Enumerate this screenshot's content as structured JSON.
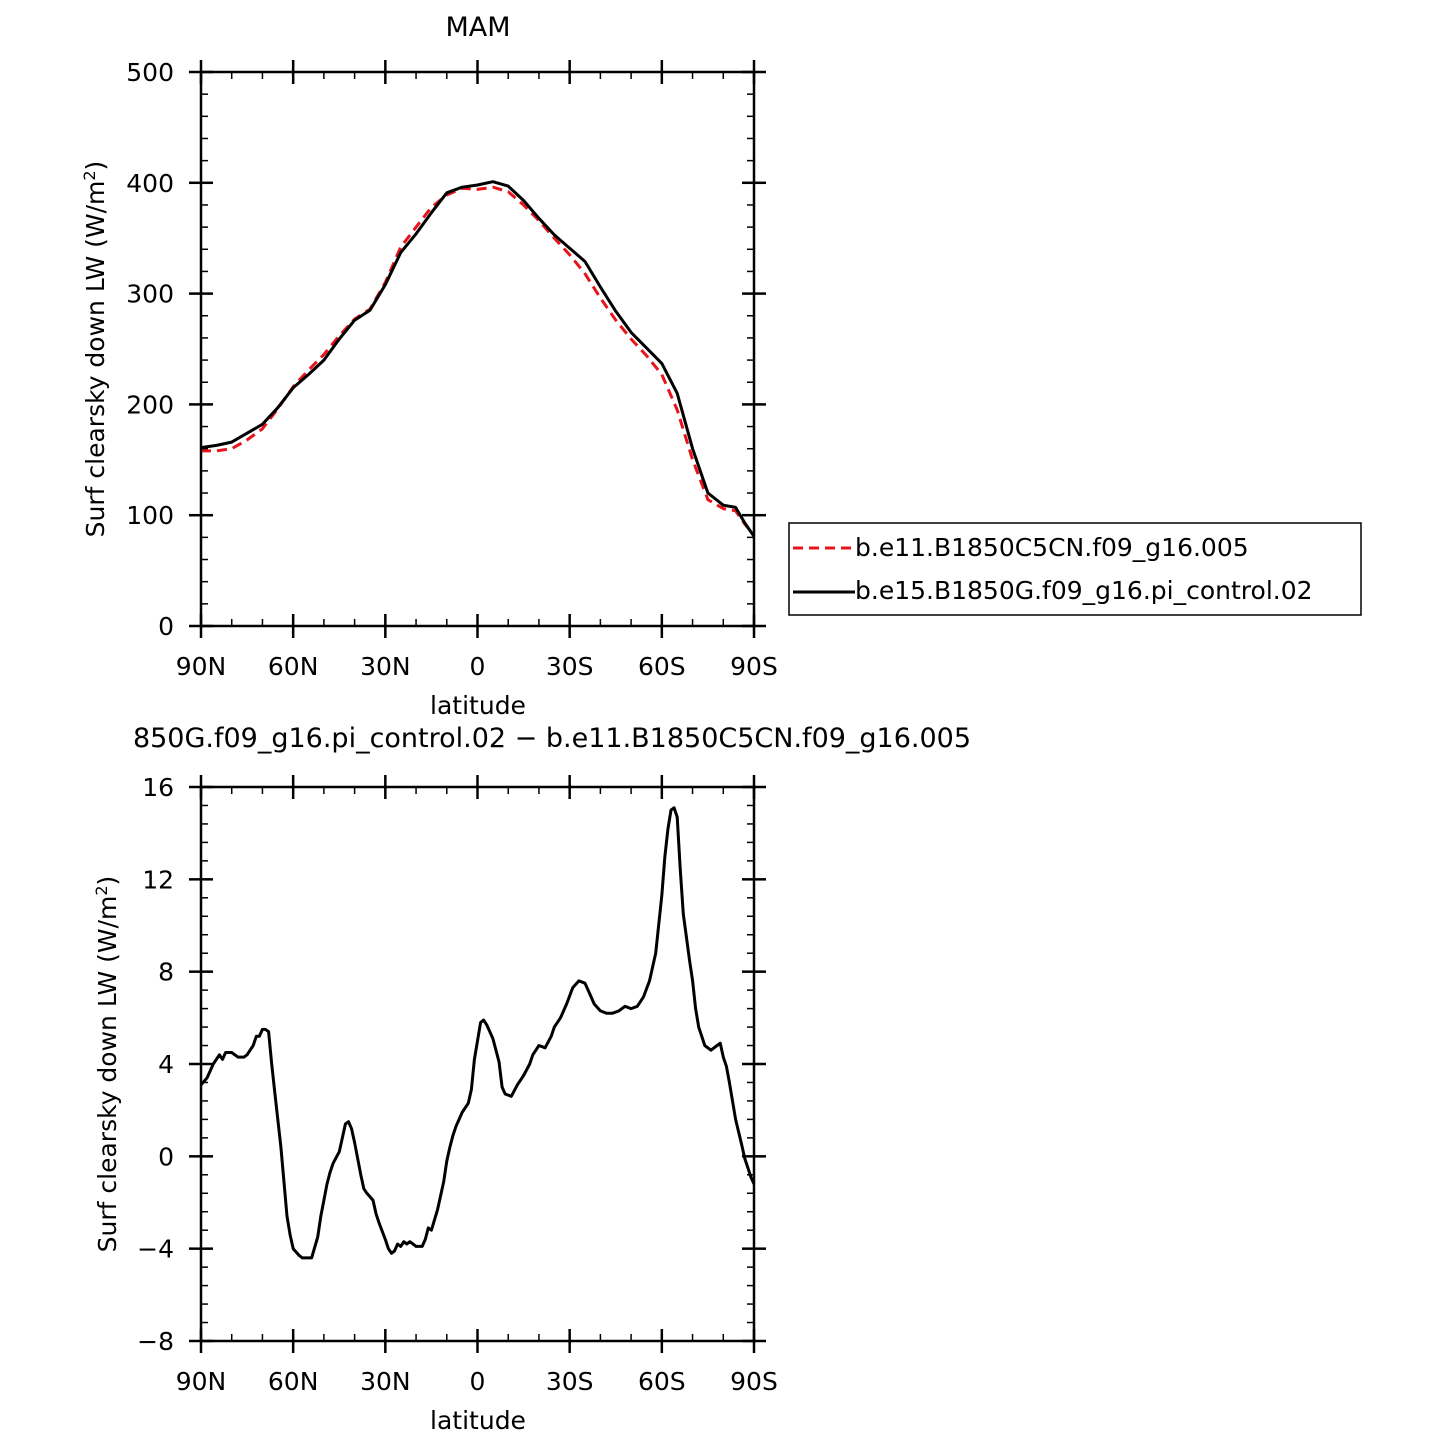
{
  "chart_data": [
    {
      "type": "line",
      "title": "MAM",
      "xlabel": "latitude",
      "ylabel": "Surf clearsky down LW (W/m",
      "ylabel_sup": "2",
      "ylabel_tail": ")",
      "xlim": [
        90,
        -90
      ],
      "ylim": [
        0,
        500
      ],
      "xticks": [
        90,
        60,
        30,
        0,
        -30,
        -60,
        -90
      ],
      "xticklabels": [
        "90N",
        "60N",
        "30N",
        "0",
        "30S",
        "60S",
        "90S"
      ],
      "yticks": [
        0,
        100,
        200,
        300,
        400,
        500
      ],
      "yticklabels": [
        "0",
        "100",
        "200",
        "300",
        "400",
        "500"
      ],
      "legend_position": "right",
      "series": [
        {
          "name": "b.e11.B1850C5CN.f09_g16.005",
          "color": "#e8141b",
          "style": "dashed",
          "x": [
            90,
            85,
            80,
            75,
            70,
            65,
            60,
            55,
            50,
            45,
            40,
            35,
            30,
            25,
            20,
            15,
            10,
            5,
            0,
            -5,
            -10,
            -15,
            -20,
            -25,
            -30,
            -35,
            -40,
            -45,
            -50,
            -55,
            -60,
            -65,
            -70,
            -75,
            -80,
            -84,
            -87,
            -90
          ],
          "y": [
            158,
            158,
            160,
            168,
            178,
            196,
            216,
            231,
            245,
            262,
            277,
            286,
            310,
            342,
            360,
            378,
            389,
            395,
            394,
            396,
            392,
            380,
            366,
            350,
            335,
            318,
            296,
            276,
            259,
            244,
            227,
            195,
            150,
            114,
            106,
            104,
            92,
            82
          ]
        },
        {
          "name": "b.e15.B1850G.f09_g16.pi_control.02",
          "color": "#000000",
          "style": "solid",
          "x": [
            90,
            85,
            80,
            75,
            70,
            65,
            60,
            55,
            50,
            45,
            40,
            35,
            30,
            25,
            20,
            15,
            10,
            5,
            0,
            -5,
            -10,
            -15,
            -20,
            -25,
            -30,
            -35,
            -40,
            -45,
            -50,
            -55,
            -60,
            -65,
            -70,
            -75,
            -80,
            -84,
            -87,
            -90
          ],
          "y": [
            161,
            163,
            166,
            174,
            182,
            197,
            215,
            227,
            240,
            259,
            276,
            285,
            308,
            337,
            354,
            373,
            391,
            396,
            398,
            401,
            397,
            384,
            368,
            353,
            341,
            329,
            306,
            284,
            265,
            251,
            237,
            210,
            160,
            120,
            109,
            107,
            93,
            81
          ]
        }
      ]
    },
    {
      "type": "line",
      "title": "850G.f09_g16.pi_control.02 − b.e11.B1850C5CN.f09_g16.005",
      "xlabel": "latitude",
      "ylabel": "Surf clearsky down LW (W/m",
      "ylabel_sup": "2",
      "ylabel_tail": ")",
      "xlim": [
        90,
        -90
      ],
      "ylim": [
        -8,
        16
      ],
      "xticks": [
        90,
        60,
        30,
        0,
        -30,
        -60,
        -90
      ],
      "xticklabels": [
        "90N",
        "60N",
        "30N",
        "0",
        "30S",
        "60S",
        "90S"
      ],
      "yticks": [
        -8,
        -4,
        0,
        4,
        8,
        12,
        16
      ],
      "yticklabels": [
        "−8",
        "−4",
        "0",
        "4",
        "8",
        "12",
        "16"
      ],
      "series": [
        {
          "color": "#000000",
          "style": "solid",
          "x": [
            90,
            88,
            86,
            84,
            83,
            82,
            80,
            78,
            76,
            75,
            73,
            72,
            71,
            70,
            69,
            68,
            67,
            66,
            65,
            64,
            62,
            61,
            60,
            58,
            57,
            56,
            54,
            52,
            51,
            50,
            49,
            48,
            47,
            45,
            43,
            42,
            41,
            40,
            39,
            38,
            37,
            36,
            34,
            33,
            32,
            30,
            29,
            28,
            27,
            26,
            25,
            24,
            23,
            22,
            21,
            20,
            19,
            18,
            17,
            16,
            15,
            13,
            11,
            10,
            9,
            8,
            7,
            6,
            5,
            3,
            2,
            1,
            0,
            -1,
            -2,
            -3,
            -5,
            -7,
            -8,
            -9,
            -11,
            -13,
            -15,
            -17,
            -18,
            -20,
            -22,
            -24,
            -25,
            -27,
            -29,
            -31,
            -33,
            -35,
            -36,
            -37,
            -38,
            -40,
            -42,
            -44,
            -46,
            -48,
            -50,
            -52,
            -54,
            -56,
            -58,
            -60,
            -61,
            -62,
            -63,
            -64,
            -65,
            -66,
            -67,
            -68,
            -69,
            -70,
            -71,
            -72,
            -74,
            -76,
            -78,
            -79,
            -80,
            -81,
            -82,
            -84,
            -86,
            -87,
            -88,
            -89,
            -90
          ],
          "y": [
            3.1,
            3.4,
            4.0,
            4.4,
            4.2,
            4.5,
            4.5,
            4.3,
            4.3,
            4.4,
            4.8,
            5.2,
            5.2,
            5.5,
            5.5,
            5.4,
            4.0,
            2.8,
            1.6,
            0.4,
            -2.6,
            -3.4,
            -4.0,
            -4.3,
            -4.4,
            -4.4,
            -4.4,
            -3.5,
            -2.6,
            -1.9,
            -1.2,
            -0.7,
            -0.3,
            0.2,
            1.4,
            1.5,
            1.2,
            0.6,
            -0.1,
            -0.8,
            -1.4,
            -1.6,
            -1.9,
            -2.5,
            -2.9,
            -3.6,
            -4.0,
            -4.2,
            -4.1,
            -3.8,
            -3.9,
            -3.7,
            -3.8,
            -3.7,
            -3.8,
            -3.9,
            -3.9,
            -3.9,
            -3.6,
            -3.1,
            -3.2,
            -2.3,
            -1.1,
            -0.2,
            0.4,
            0.9,
            1.3,
            1.6,
            1.9,
            2.3,
            2.9,
            4.2,
            5.0,
            5.8,
            5.9,
            5.7,
            5.1,
            4.1,
            3.0,
            2.7,
            2.6,
            3.1,
            3.5,
            4.0,
            4.4,
            4.8,
            4.7,
            5.2,
            5.6,
            6.0,
            6.6,
            7.3,
            7.6,
            7.5,
            7.2,
            6.9,
            6.6,
            6.3,
            6.2,
            6.2,
            6.3,
            6.5,
            6.4,
            6.5,
            6.9,
            7.6,
            8.8,
            11.3,
            13.0,
            14.2,
            15.0,
            15.1,
            14.7,
            12.4,
            10.5,
            9.5,
            8.5,
            7.6,
            6.4,
            5.6,
            4.8,
            4.6,
            4.8,
            4.9,
            4.3,
            3.9,
            3.2,
            1.6,
            0.5,
            -0.1,
            -0.5,
            -0.9,
            -1.2
          ]
        }
      ]
    }
  ]
}
